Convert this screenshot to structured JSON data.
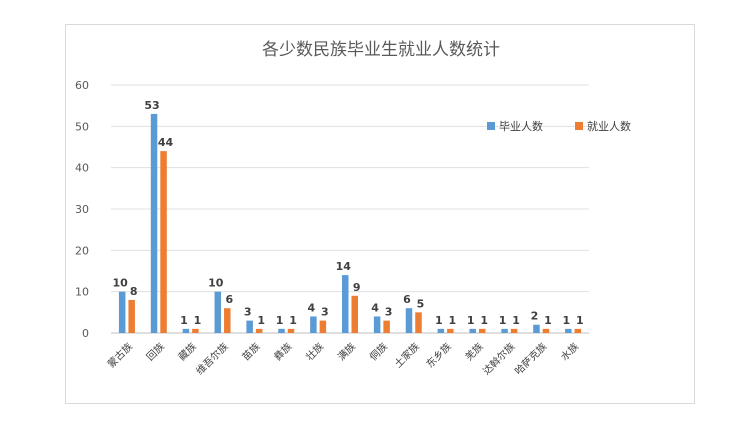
{
  "chart_data": {
    "type": "bar",
    "title": "各少数民族毕业生就业人数统计",
    "categories": [
      "蒙古族",
      "回族",
      "藏族",
      "维吾尔族",
      "苗族",
      "彝族",
      "壮族",
      "满族",
      "侗族",
      "土家族",
      "东乡族",
      "羌族",
      "达斡尔族",
      "哈萨克族",
      "水族"
    ],
    "series": [
      {
        "name": "毕业人数",
        "color": "#5b9bd5",
        "values": [
          10,
          53,
          1,
          10,
          3,
          1,
          4,
          14,
          4,
          6,
          1,
          1,
          1,
          2,
          1
        ]
      },
      {
        "name": "就业人数",
        "color": "#ed7d31",
        "values": [
          8,
          44,
          1,
          6,
          1,
          1,
          3,
          9,
          3,
          5,
          1,
          1,
          1,
          1,
          1
        ]
      }
    ],
    "ylim": [
      0,
      60
    ],
    "yticks": [
      0,
      10,
      20,
      30,
      40,
      50,
      60
    ],
    "grid": true,
    "legend_position": "right"
  }
}
